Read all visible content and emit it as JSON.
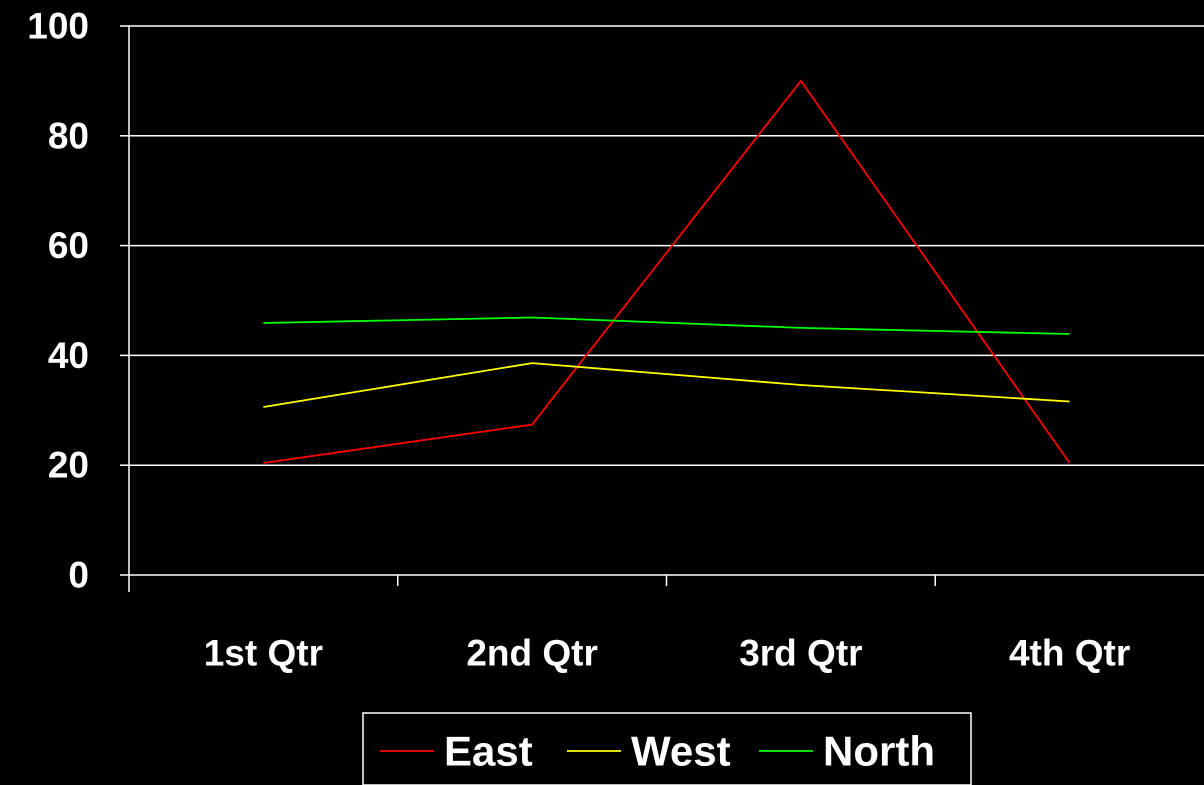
{
  "chart_data": {
    "type": "line",
    "title": "",
    "xlabel": "",
    "ylabel": "",
    "categories": [
      "1st Qtr",
      "2nd Qtr",
      "3rd Qtr",
      "4th Qtr"
    ],
    "ylim": [
      0,
      100
    ],
    "yticks": [
      0,
      20,
      40,
      60,
      80,
      100
    ],
    "grid": true,
    "legend_position": "bottom",
    "series": [
      {
        "name": "East",
        "color": "#ff0000",
        "values": [
          20.4,
          27.4,
          90,
          20.4
        ]
      },
      {
        "name": "West",
        "color": "#ffff00",
        "values": [
          30.6,
          38.6,
          34.6,
          31.6
        ]
      },
      {
        "name": "North",
        "color": "#00ff00",
        "values": [
          45.9,
          46.9,
          45,
          43.9
        ]
      }
    ]
  },
  "colors": {
    "background": "#000000",
    "axis": "#ffffff",
    "grid": "#ffffff",
    "text": "#ffffff"
  }
}
